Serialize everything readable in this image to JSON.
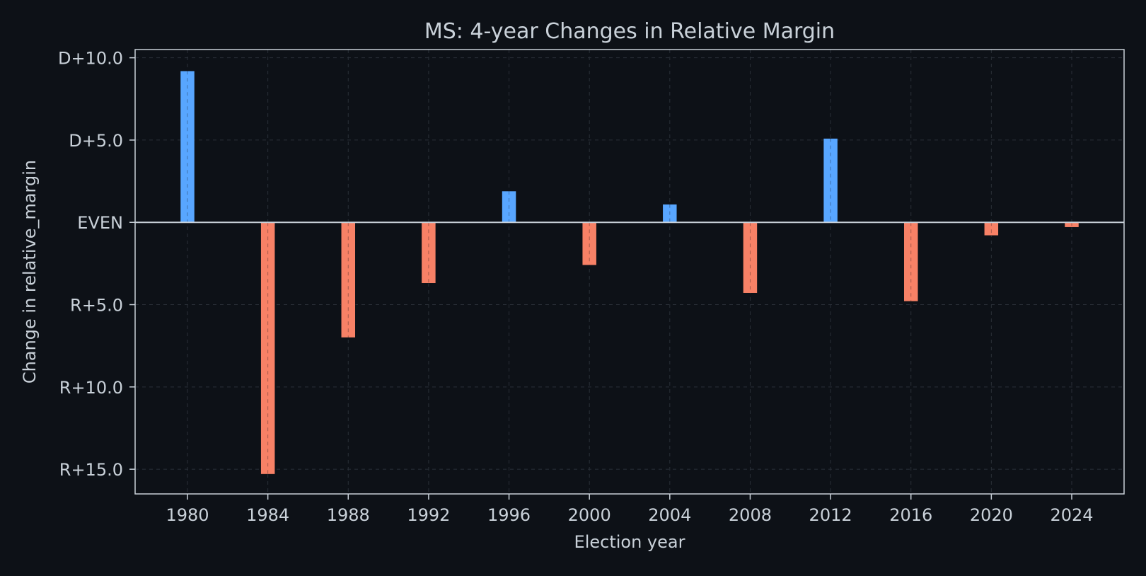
{
  "colors": {
    "background": "#0d1117",
    "plot_background": "#0d1117",
    "text": "#c9d1d9",
    "frame": "#c9d1d9",
    "grid": "#2a3038",
    "zero_line": "#c9d1d9",
    "dem": "#58a6ff",
    "rep": "#f78166"
  },
  "chart_data": {
    "type": "bar",
    "title": "MS: 4-year Changes in Relative Margin",
    "xlabel": "Election year",
    "ylabel": "Change in relative_margin",
    "categories": [
      "1980",
      "1984",
      "1988",
      "1992",
      "1996",
      "2000",
      "2004",
      "2008",
      "2012",
      "2016",
      "2020",
      "2024"
    ],
    "values": [
      9.2,
      -15.3,
      -7.0,
      -3.7,
      1.9,
      -2.6,
      1.1,
      -4.3,
      5.1,
      -4.8,
      -0.8,
      -0.3
    ],
    "ylim": [
      -16.5,
      10.5
    ],
    "y_ticks": [
      {
        "value": 10,
        "label": "D+10.0"
      },
      {
        "value": 5,
        "label": "D+5.0"
      },
      {
        "value": 0,
        "label": "EVEN"
      },
      {
        "value": -5,
        "label": "R+5.0"
      },
      {
        "value": -10,
        "label": "R+10.0"
      },
      {
        "value": -15,
        "label": "R+15.0"
      }
    ],
    "grid": true,
    "positive_color_meaning": "D",
    "negative_color_meaning": "R"
  }
}
